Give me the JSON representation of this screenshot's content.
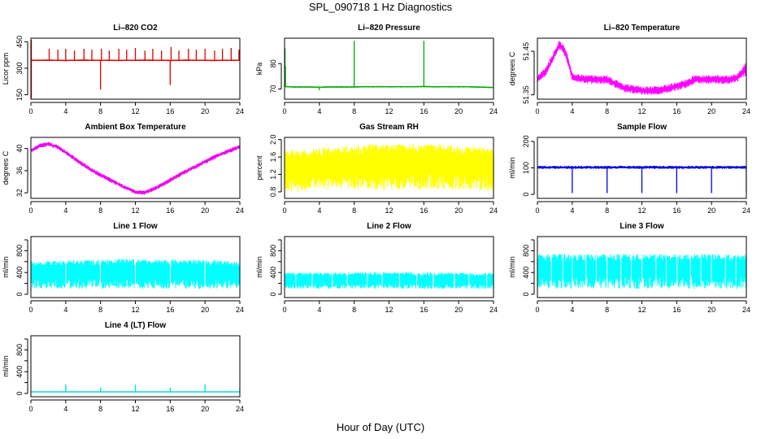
{
  "figure": {
    "title": "SPL_090718  1 Hz Diagnostics",
    "xlabel": "Hour of Day (UTC)"
  },
  "chart_data": [
    {
      "type": "line",
      "title": "Li–820 CO2",
      "ylabel": "Licor ppm",
      "color": "#dd0000",
      "xlim": [
        0,
        24
      ],
      "xticks": [
        0,
        4,
        8,
        12,
        16,
        20,
        24
      ],
      "ylim": [
        125,
        470
      ],
      "yticks": [
        150,
        300,
        450
      ],
      "yticklabels": [
        "150",
        "300",
        "450"
      ],
      "series": [
        {
          "x": [
            0,
            1,
            2,
            3,
            4,
            5,
            6,
            7,
            8,
            9,
            10,
            11,
            12,
            13,
            14,
            15,
            16,
            17,
            18,
            19,
            20,
            21,
            22,
            23,
            24
          ],
          "y": [
            345,
            345,
            346,
            345,
            344,
            345,
            346,
            345,
            345,
            345,
            344,
            345,
            345,
            346,
            345,
            345,
            344,
            345,
            346,
            345,
            345,
            344,
            345,
            345,
            345
          ],
          "band": [
            8,
            8,
            8,
            8,
            8,
            8,
            8,
            8,
            8,
            8,
            8,
            8,
            8,
            8,
            8,
            8,
            8,
            8,
            8,
            8,
            8,
            8,
            8,
            8,
            8
          ],
          "spikes": [
            [
              0.05,
              130
            ],
            [
              0.05,
              460
            ],
            [
              2.1,
              410
            ],
            [
              3.1,
              405
            ],
            [
              4.0,
              410
            ],
            [
              5.0,
              400
            ],
            [
              6.1,
              410
            ],
            [
              7.0,
              405
            ],
            [
              8.0,
              180
            ],
            [
              8.1,
              410
            ],
            [
              9.0,
              400
            ],
            [
              10.1,
              410
            ],
            [
              11.0,
              405
            ],
            [
              12.0,
              415
            ],
            [
              13.1,
              400
            ],
            [
              14.0,
              410
            ],
            [
              15.0,
              400
            ],
            [
              16.0,
              205
            ],
            [
              16.1,
              420
            ],
            [
              17.0,
              400
            ],
            [
              18.1,
              410
            ],
            [
              19.0,
              405
            ],
            [
              20.0,
              410
            ],
            [
              21.1,
              400
            ],
            [
              22.0,
              410
            ],
            [
              23.0,
              415
            ],
            [
              23.9,
              405
            ]
          ]
        }
      ]
    },
    {
      "type": "line",
      "title": "Li–820 Pressure",
      "ylabel": "kPa",
      "color": "#00aa00",
      "xlim": [
        0,
        24
      ],
      "xticks": [
        0,
        4,
        8,
        12,
        16,
        20,
        24
      ],
      "ylim": [
        66,
        90
      ],
      "yticks": [
        70,
        80
      ],
      "yticklabels": [
        "70",
        "80"
      ],
      "series": [
        {
          "x": [
            0,
            1,
            2,
            3,
            4,
            5,
            6,
            7,
            8,
            9,
            10,
            11,
            12,
            13,
            14,
            15,
            16,
            17,
            18,
            19,
            20,
            21,
            22,
            23,
            24
          ],
          "y": [
            71,
            70.8,
            70.8,
            70.8,
            70.7,
            70.8,
            70.8,
            70.8,
            70.8,
            70.9,
            70.9,
            70.9,
            70.9,
            70.9,
            70.9,
            70.9,
            71.0,
            70.9,
            70.9,
            70.9,
            70.9,
            70.9,
            70.8,
            70.7,
            70.6
          ],
          "band": [
            0.6,
            0.6,
            0.6,
            0.6,
            0.6,
            0.6,
            0.6,
            0.6,
            0.6,
            0.6,
            0.6,
            0.6,
            0.6,
            0.6,
            0.6,
            0.6,
            0.6,
            0.6,
            0.6,
            0.6,
            0.6,
            0.6,
            0.6,
            0.6,
            0.6
          ],
          "spikes": [
            [
              0.05,
              86
            ],
            [
              0.1,
              79
            ],
            [
              4.0,
              69.5
            ],
            [
              8.0,
              89
            ],
            [
              16.0,
              89
            ],
            [
              24.0,
              89
            ]
          ]
        }
      ]
    },
    {
      "type": "line",
      "title": "Li–820 Temperature",
      "ylabel": "degrees C",
      "color": "#ff00ff",
      "xlim": [
        0,
        24
      ],
      "xticks": [
        0,
        4,
        8,
        12,
        16,
        20,
        24
      ],
      "ylim": [
        51.34,
        51.48
      ],
      "yticks": [
        51.35,
        51.45
      ],
      "yticklabels": [
        "51.35",
        "51.45"
      ],
      "series": [
        {
          "x": [
            0,
            1,
            2,
            2.5,
            3,
            3.5,
            4,
            6,
            8,
            9,
            10,
            12,
            14,
            16,
            17,
            18,
            20,
            22,
            23,
            23.5,
            24
          ],
          "y": [
            51.385,
            51.405,
            51.445,
            51.465,
            51.455,
            51.43,
            51.39,
            51.385,
            51.385,
            51.375,
            51.365,
            51.36,
            51.36,
            51.37,
            51.375,
            51.385,
            51.385,
            51.385,
            51.39,
            51.4,
            51.41
          ],
          "band": [
            0.02,
            0.02,
            0.02,
            0.02,
            0.02,
            0.02,
            0.02,
            0.02,
            0.02,
            0.02,
            0.02,
            0.02,
            0.02,
            0.02,
            0.02,
            0.02,
            0.02,
            0.02,
            0.02,
            0.02,
            0.04
          ]
        }
      ]
    },
    {
      "type": "line",
      "title": "Ambient Box Temperature",
      "ylabel": "degrees C",
      "color": "#ee00ee",
      "xlim": [
        0,
        24
      ],
      "xticks": [
        0,
        4,
        8,
        12,
        16,
        20,
        24
      ],
      "ylim": [
        31,
        42
      ],
      "yticks": [
        32,
        36,
        40
      ],
      "yticklabels": [
        "32",
        "36",
        "40"
      ],
      "series": [
        {
          "x": [
            0,
            1,
            2,
            3,
            4,
            5,
            6,
            7,
            8,
            9,
            10,
            11,
            12,
            13,
            14,
            15,
            16,
            17,
            18,
            19,
            20,
            21,
            22,
            23,
            24
          ],
          "y": [
            39.6,
            40.5,
            40.8,
            40.3,
            39.3,
            38.2,
            37.1,
            36.1,
            35.2,
            34.4,
            33.6,
            32.8,
            32.2,
            32.0,
            32.6,
            33.4,
            34.3,
            35.2,
            36.0,
            36.8,
            37.6,
            38.4,
            39.1,
            39.7,
            40.3
          ],
          "band": [
            0.8,
            0.8,
            0.8,
            0.8,
            0.8,
            0.8,
            0.8,
            0.8,
            0.8,
            0.8,
            0.8,
            0.8,
            0.8,
            0.8,
            0.8,
            0.8,
            0.8,
            0.8,
            0.8,
            0.8,
            0.8,
            0.8,
            0.8,
            0.8,
            0.8
          ]
        }
      ]
    },
    {
      "type": "area",
      "title": "Gas Stream RH",
      "ylabel": "percent",
      "color": "#ffff00",
      "xlim": [
        0,
        24
      ],
      "xticks": [
        0,
        4,
        8,
        12,
        16,
        20,
        24
      ],
      "ylim": [
        0.65,
        2.05
      ],
      "yticks": [
        0.8,
        1.2,
        1.6,
        2.0
      ],
      "yticklabels": [
        "0.8",
        "1.2",
        "1.6",
        "2.0"
      ],
      "series": [
        {
          "x": [
            0,
            2,
            4,
            6,
            8,
            10,
            12,
            14,
            16,
            18,
            20,
            22,
            24
          ],
          "low": [
            0.8,
            0.8,
            0.85,
            0.85,
            0.85,
            0.85,
            0.85,
            0.85,
            0.85,
            0.85,
            0.85,
            0.85,
            0.8
          ],
          "high": [
            1.75,
            1.75,
            1.8,
            1.85,
            1.85,
            1.9,
            1.9,
            1.9,
            1.9,
            1.9,
            1.85,
            1.85,
            1.8
          ]
        }
      ]
    },
    {
      "type": "line",
      "title": "Sample Flow",
      "ylabel": "ml/min",
      "color": "#0000dd",
      "xlim": [
        0,
        24
      ],
      "xticks": [
        0,
        4,
        8,
        12,
        16,
        20,
        24
      ],
      "ylim": [
        -15,
        215
      ],
      "yticks": [
        0,
        100,
        200
      ],
      "yticklabels": [
        "0",
        "100",
        "200"
      ],
      "series": [
        {
          "x": [
            0,
            2,
            4,
            6,
            8,
            10,
            12,
            14,
            16,
            18,
            20,
            22,
            24
          ],
          "y": [
            102,
            102,
            102,
            102,
            102,
            102,
            102,
            102,
            102,
            102,
            102,
            102,
            102
          ],
          "band": [
            12,
            12,
            12,
            12,
            12,
            12,
            12,
            12,
            12,
            12,
            12,
            12,
            12
          ],
          "spikes": [
            [
              4.0,
              5
            ],
            [
              8.0,
              5
            ],
            [
              12.0,
              5
            ],
            [
              16.0,
              5
            ],
            [
              20.0,
              5
            ],
            [
              24.0,
              5
            ]
          ]
        }
      ]
    },
    {
      "type": "area",
      "title": "Line 1 Flow",
      "ylabel": "ml/min",
      "color": "#00ffff",
      "xlim": [
        0,
        24
      ],
      "xticks": [
        0,
        4,
        8,
        12,
        16,
        20,
        24
      ],
      "ylim": [
        -60,
        1060
      ],
      "yticks": [
        0,
        200,
        400,
        600,
        800,
        1000
      ],
      "yticklabels": [
        "0",
        "",
        "400",
        "",
        "800",
        ""
      ],
      "series": [
        {
          "x": [
            0,
            4,
            8,
            12,
            16,
            20,
            24
          ],
          "low": [
            100,
            100,
            100,
            100,
            100,
            100,
            100
          ],
          "high": [
            610,
            630,
            640,
            650,
            640,
            630,
            610
          ],
          "gaps": [
            4,
            8,
            12,
            16,
            20,
            24
          ]
        }
      ]
    },
    {
      "type": "area",
      "title": "Line 2 Flow",
      "ylabel": "ml/min",
      "color": "#00ffff",
      "xlim": [
        0,
        24
      ],
      "xticks": [
        0,
        4,
        8,
        12,
        16,
        20,
        24
      ],
      "ylim": [
        -60,
        1060
      ],
      "yticks": [
        0,
        200,
        400,
        600,
        800,
        1000
      ],
      "yticklabels": [
        "0",
        "",
        "400",
        "",
        "800",
        ""
      ],
      "series": [
        {
          "x": [
            0,
            4,
            8,
            12,
            16,
            20,
            24
          ],
          "low": [
            100,
            100,
            100,
            100,
            100,
            100,
            100
          ],
          "high": [
            400,
            400,
            400,
            410,
            400,
            400,
            390
          ],
          "gaps": [
            1.3,
            3.2,
            5.5,
            7.2,
            9.5,
            11.2,
            13.2,
            15.2,
            17.1,
            19.5,
            21.2,
            23.2
          ]
        }
      ]
    },
    {
      "type": "area",
      "title": "Line 3 Flow",
      "ylabel": "ml/min",
      "color": "#00ffff",
      "xlim": [
        0,
        24
      ],
      "xticks": [
        0,
        4,
        8,
        12,
        16,
        20,
        24
      ],
      "ylim": [
        -60,
        1060
      ],
      "yticks": [
        0,
        200,
        400,
        600,
        800,
        1000
      ],
      "yticklabels": [
        "0",
        "",
        "400",
        "",
        "800",
        ""
      ],
      "series": [
        {
          "x": [
            0,
            4,
            8,
            12,
            16,
            20,
            24
          ],
          "low": [
            100,
            100,
            100,
            100,
            100,
            100,
            100
          ],
          "high": [
            740,
            740,
            740,
            745,
            740,
            740,
            730
          ],
          "gaps": [
            1.6,
            2.9,
            4.0,
            5.6,
            6.8,
            8.0,
            9.6,
            10.8,
            12.0,
            13.6,
            14.8,
            16.0,
            17.6,
            18.8,
            20.0,
            21.6,
            22.8
          ]
        }
      ]
    },
    {
      "type": "line",
      "title": "Line 4 (LT) Flow",
      "ylabel": "ml/min",
      "color": "#00dddd",
      "xlim": [
        0,
        24
      ],
      "xticks": [
        0,
        4,
        8,
        12,
        16,
        20,
        24
      ],
      "ylim": [
        -60,
        1060
      ],
      "yticks": [
        0,
        200,
        400,
        600,
        800,
        1000
      ],
      "yticklabels": [
        "0",
        "",
        "400",
        "",
        "800",
        ""
      ],
      "series": [
        {
          "x": [
            0,
            4,
            8,
            12,
            16,
            20,
            24
          ],
          "y": [
            30,
            30,
            30,
            30,
            30,
            30,
            30
          ],
          "band": [
            6,
            6,
            6,
            6,
            6,
            6,
            6
          ],
          "spikes": [
            [
              4.0,
              170
            ],
            [
              8.0,
              110
            ],
            [
              12.0,
              160
            ],
            [
              16.0,
              105
            ],
            [
              20.0,
              170
            ],
            [
              24.0,
              115
            ]
          ]
        }
      ]
    }
  ]
}
